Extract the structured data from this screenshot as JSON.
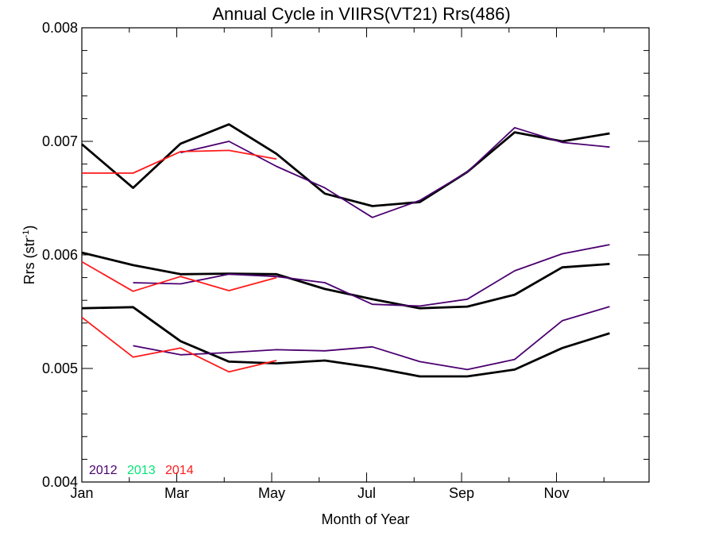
{
  "chart_data": {
    "type": "line",
    "title": "Annual Cycle in VIIRS(VT21) Rrs(486)",
    "xlabel": "Month of Year",
    "ylabel_main": "Rrs (str",
    "ylabel_sup": "-1",
    "ylabel_close": ")",
    "xlim": [
      1,
      12.95
    ],
    "ylim": [
      0.004,
      0.008
    ],
    "x_ticks": [
      {
        "value": 1,
        "label": "Jan"
      },
      {
        "value": 3,
        "label": "Mar"
      },
      {
        "value": 5,
        "label": "May"
      },
      {
        "value": 7,
        "label": "Jul"
      },
      {
        "value": 9,
        "label": "Sep"
      },
      {
        "value": 11,
        "label": "Nov"
      }
    ],
    "y_ticks": [
      {
        "value": 0.004,
        "label": "0.004"
      },
      {
        "value": 0.005,
        "label": "0.005"
      },
      {
        "value": 0.006,
        "label": "0.006"
      },
      {
        "value": 0.007,
        "label": "0.007"
      },
      {
        "value": 0.008,
        "label": "0.008"
      }
    ],
    "legend": [
      {
        "label": "2012",
        "color": "#4b0070"
      },
      {
        "label": "2013",
        "color": "#00e676"
      },
      {
        "label": "2014",
        "color": "#ff1a1a"
      }
    ],
    "series": [
      {
        "group": "climatology",
        "color": "#000000",
        "x": [
          1.0,
          2.08,
          3.08,
          4.1,
          5.1,
          6.12,
          7.12,
          8.12,
          9.12,
          10.12,
          11.12,
          12.12
        ],
        "y": [
          0.006975,
          0.00659,
          0.00698,
          0.00715,
          0.00689,
          0.00654,
          0.00643,
          0.006465,
          0.00673,
          0.00708,
          0.007,
          0.00707
        ]
      },
      {
        "group": "2012",
        "color": "#4b0070",
        "x": [
          3.08,
          4.1,
          5.1,
          6.12,
          7.12,
          8.12,
          9.12,
          10.12,
          11.12,
          12.12
        ],
        "y": [
          0.0069,
          0.007,
          0.00678,
          0.00659,
          0.00633,
          0.00648,
          0.00673,
          0.00712,
          0.00699,
          0.00695
        ]
      },
      {
        "group": "2014",
        "color": "#ff1a1a",
        "x": [
          1.0,
          2.08,
          3.08,
          4.1,
          5.1
        ],
        "y": [
          0.00672,
          0.00672,
          0.00691,
          0.00692,
          0.006845
        ]
      },
      {
        "group": "climatology",
        "color": "#000000",
        "x": [
          1.0,
          2.08,
          3.08,
          4.1,
          5.1,
          6.12,
          7.12,
          8.12,
          9.12,
          10.12,
          11.12,
          12.12
        ],
        "y": [
          0.00602,
          0.00591,
          0.00583,
          0.005835,
          0.00583,
          0.0057,
          0.00561,
          0.00553,
          0.005545,
          0.00565,
          0.00589,
          0.00592
        ]
      },
      {
        "group": "2012",
        "color": "#4b0070",
        "x": [
          2.08,
          3.08,
          4.1,
          5.1,
          6.12,
          7.12,
          8.12,
          9.12,
          10.12,
          11.12,
          12.12
        ],
        "y": [
          0.005755,
          0.005745,
          0.00583,
          0.00581,
          0.005755,
          0.005565,
          0.00555,
          0.00561,
          0.00586,
          0.00601,
          0.00609
        ]
      },
      {
        "group": "2014",
        "color": "#ff1a1a",
        "x": [
          1.0,
          2.08,
          3.08,
          4.1,
          5.1
        ],
        "y": [
          0.00594,
          0.00568,
          0.00581,
          0.005685,
          0.0058
        ]
      },
      {
        "group": "climatology",
        "color": "#000000",
        "x": [
          1.0,
          2.08,
          3.08,
          4.1,
          5.1,
          6.12,
          7.12,
          8.12,
          9.12,
          10.12,
          11.12,
          12.12
        ],
        "y": [
          0.00553,
          0.00554,
          0.00524,
          0.00506,
          0.005045,
          0.00507,
          0.00501,
          0.00493,
          0.00493,
          0.00499,
          0.00518,
          0.00531
        ]
      },
      {
        "group": "2012",
        "color": "#4b0070",
        "x": [
          2.08,
          3.08,
          4.1,
          5.1,
          6.12,
          7.12,
          8.12,
          9.12,
          10.12,
          11.12,
          12.12
        ],
        "y": [
          0.0052,
          0.00512,
          0.00514,
          0.005165,
          0.005155,
          0.00519,
          0.00506,
          0.00499,
          0.00508,
          0.00542,
          0.005545
        ]
      },
      {
        "group": "2014",
        "color": "#ff1a1a",
        "x": [
          1.0,
          2.08,
          3.08,
          4.1,
          5.1
        ],
        "y": [
          0.00545,
          0.0051,
          0.00518,
          0.00497,
          0.00507
        ]
      }
    ]
  }
}
